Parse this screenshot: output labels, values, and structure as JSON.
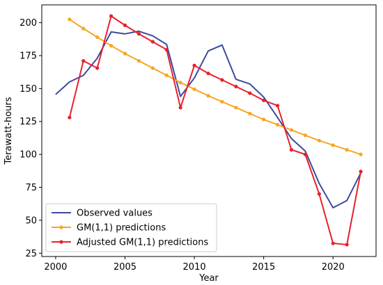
{
  "chart_data": {
    "type": "line",
    "xlabel": "Year",
    "ylabel": "Terawatt-hours",
    "xlim": [
      1999.0,
      2023.1
    ],
    "ylim": [
      22.5,
      213.5
    ],
    "xticks": [
      2000,
      2005,
      2010,
      2015,
      2020
    ],
    "yticks": [
      25,
      50,
      75,
      100,
      125,
      150,
      175,
      200
    ],
    "grid": false,
    "legend_position": "lower-left",
    "series": [
      {
        "name": "Observed values",
        "color": "#3b4aa0",
        "marker": "none",
        "x": [
          2000,
          2001,
          2002,
          2003,
          2004,
          2005,
          2006,
          2007,
          2008,
          2009,
          2010,
          2011,
          2012,
          2013,
          2014,
          2015,
          2016,
          2017,
          2018,
          2019,
          2020,
          2021,
          2022
        ],
        "values": [
          145.5,
          155,
          160,
          173,
          193,
          191.5,
          193.5,
          190,
          183.5,
          144,
          158,
          178.5,
          183,
          157,
          153.5,
          143.5,
          128,
          112,
          102.5,
          78,
          59.5,
          65,
          86
        ]
      },
      {
        "name": "GM(1,1) predictions",
        "color": "#f5a623",
        "marker": "circle",
        "x": [
          2001,
          2002,
          2003,
          2004,
          2005,
          2006,
          2007,
          2008,
          2009,
          2010,
          2011,
          2012,
          2013,
          2014,
          2015,
          2016,
          2017,
          2018,
          2019,
          2020,
          2021,
          2022
        ],
        "values": [
          202.5,
          195.5,
          189,
          182.5,
          176.5,
          171,
          165.5,
          160,
          154.5,
          149.5,
          144.5,
          140,
          135.5,
          131,
          126.5,
          122.5,
          118.5,
          114.5,
          110.5,
          107,
          103.5,
          100
        ]
      },
      {
        "name": "Adjusted GM(1,1) predictions",
        "color": "#e8202a",
        "marker": "circle",
        "x": [
          2001,
          2002,
          2003,
          2004,
          2005,
          2006,
          2007,
          2008,
          2009,
          2010,
          2011,
          2012,
          2013,
          2014,
          2015,
          2016,
          2017,
          2018,
          2019,
          2020,
          2021,
          2022
        ],
        "values": [
          128,
          171,
          165.5,
          205,
          198,
          191.5,
          185.5,
          179.5,
          135.5,
          167.5,
          161.5,
          156.5,
          151.5,
          146.5,
          141,
          137,
          103.5,
          100,
          70,
          32.5,
          31.5,
          87
        ]
      }
    ]
  }
}
